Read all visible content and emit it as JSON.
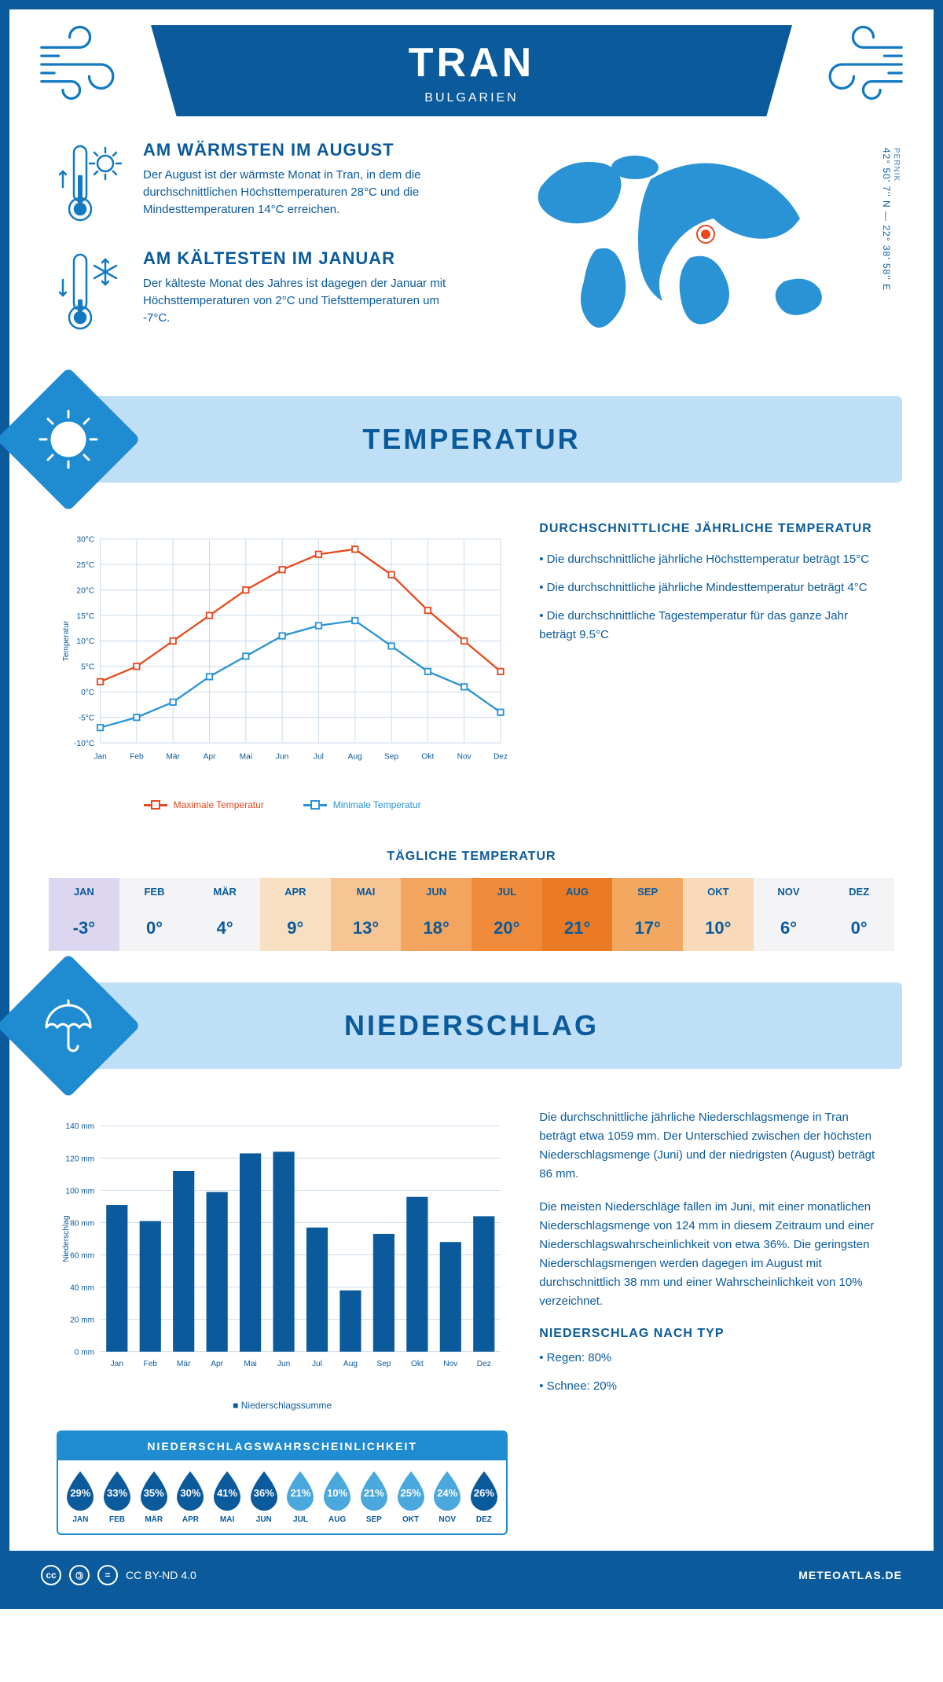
{
  "title": "TRAN",
  "subtitle": "BULGARIEN",
  "coords_region": "PERNIK",
  "coords": "42° 50' 7'' N — 22° 38' 58'' E",
  "brand_color": "#0a5a9c",
  "accent_color": "#1f8bd1",
  "band_bg": "#bedff5",
  "warmest": {
    "heading": "AM WÄRMSTEN IM AUGUST",
    "text": "Der August ist der wärmste Monat in Tran, in dem die durchschnittlichen Höchsttemperaturen 28°C und die Mindesttemperaturen 14°C erreichen."
  },
  "coldest": {
    "heading": "AM KÄLTESTEN IM JANUAR",
    "text": "Der kälteste Monat des Jahres ist dagegen der Januar mit Höchsttemperaturen von 2°C und Tiefsttemperaturen um -7°C."
  },
  "sections": {
    "temp": "TEMPERATUR",
    "precip": "NIEDERSCHLAG"
  },
  "temp_chart": {
    "months": [
      "Jan",
      "Feb",
      "Mär",
      "Apr",
      "Mai",
      "Jun",
      "Jul",
      "Aug",
      "Sep",
      "Okt",
      "Nov",
      "Dez"
    ],
    "ylim": [
      -10,
      30
    ],
    "ytick_step": 5,
    "ylabel": "Temperatur",
    "yunit": "°C",
    "series": [
      {
        "name": "Maximale Temperatur",
        "color": "#e8481e",
        "values": [
          2,
          5,
          10,
          15,
          20,
          24,
          27,
          28,
          23,
          16,
          10,
          4
        ]
      },
      {
        "name": "Minimale Temperatur",
        "color": "#2a93d5",
        "values": [
          -7,
          -5,
          -2,
          3,
          7,
          11,
          13,
          14,
          9,
          4,
          1,
          -4
        ]
      }
    ]
  },
  "temp_side": {
    "heading": "DURCHSCHNITTLICHE JÄHRLICHE TEMPERATUR",
    "bullets": [
      "• Die durchschnittliche jährliche Höchsttemperatur beträgt 15°C",
      "• Die durchschnittliche jährliche Mindesttemperatur beträgt 4°C",
      "• Die durchschnittliche Tagestemperatur für das ganze Jahr beträgt 9.5°C"
    ]
  },
  "daily_temp": {
    "heading": "TÄGLICHE TEMPERATUR",
    "cells": [
      {
        "m": "JAN",
        "v": "-3°",
        "bg": "#dcd6f0"
      },
      {
        "m": "FEB",
        "v": "0°",
        "bg": "#f4f4f6"
      },
      {
        "m": "MÄR",
        "v": "4°",
        "bg": "#f4f4f6"
      },
      {
        "m": "APR",
        "v": "9°",
        "bg": "#f9dfc2"
      },
      {
        "m": "MAI",
        "v": "13°",
        "bg": "#f7c593"
      },
      {
        "m": "JUN",
        "v": "18°",
        "bg": "#f3a55f"
      },
      {
        "m": "JUL",
        "v": "20°",
        "bg": "#ef8b3b"
      },
      {
        "m": "AUG",
        "v": "21°",
        "bg": "#ea7a24"
      },
      {
        "m": "SEP",
        "v": "17°",
        "bg": "#f3a862"
      },
      {
        "m": "OKT",
        "v": "10°",
        "bg": "#f8dabb"
      },
      {
        "m": "NOV",
        "v": "6°",
        "bg": "#f4f4f6"
      },
      {
        "m": "DEZ",
        "v": "0°",
        "bg": "#f4f4f6"
      }
    ]
  },
  "precip_chart": {
    "months": [
      "Jan",
      "Feb",
      "Mär",
      "Apr",
      "Mai",
      "Jun",
      "Jul",
      "Aug",
      "Sep",
      "Okt",
      "Nov",
      "Dez"
    ],
    "ylim": [
      0,
      140
    ],
    "ytick_step": 20,
    "ylabel": "Niederschlag",
    "yunit": " mm",
    "color": "#0a5a9c",
    "legend": "Niederschlagssumme",
    "values": [
      91,
      81,
      112,
      99,
      123,
      124,
      77,
      38,
      73,
      96,
      68,
      84
    ]
  },
  "precip_text": {
    "p1": "Die durchschnittliche jährliche Niederschlagsmenge in Tran beträgt etwa 1059 mm. Der Unterschied zwischen der höchsten Niederschlagsmenge (Juni) und der niedrigsten (August) beträgt 86 mm.",
    "p2": "Die meisten Niederschläge fallen im Juni, mit einer monatlichen Niederschlagsmenge von 124 mm in diesem Zeitraum und einer Niederschlagswahrscheinlichkeit von etwa 36%. Die geringsten Niederschlagsmengen werden dagegen im August mit durchschnittlich 38 mm und einer Wahrscheinlichkeit von 10% verzeichnet.",
    "type_heading": "NIEDERSCHLAG NACH TYP",
    "type_rain": "• Regen: 80%",
    "type_snow": "• Schnee: 20%"
  },
  "prob": {
    "heading": "NIEDERSCHLAGSWAHRSCHEINLICHKEIT",
    "items": [
      {
        "m": "JAN",
        "p": "29%",
        "c": "#0a5a9c"
      },
      {
        "m": "FEB",
        "p": "33%",
        "c": "#0a5a9c"
      },
      {
        "m": "MÄR",
        "p": "35%",
        "c": "#0a5a9c"
      },
      {
        "m": "APR",
        "p": "30%",
        "c": "#0a5a9c"
      },
      {
        "m": "MAI",
        "p": "41%",
        "c": "#0a5a9c"
      },
      {
        "m": "JUN",
        "p": "36%",
        "c": "#0a5a9c"
      },
      {
        "m": "JUL",
        "p": "21%",
        "c": "#4aa8dd"
      },
      {
        "m": "AUG",
        "p": "10%",
        "c": "#4aa8dd"
      },
      {
        "m": "SEP",
        "p": "21%",
        "c": "#4aa8dd"
      },
      {
        "m": "OKT",
        "p": "25%",
        "c": "#4aa8dd"
      },
      {
        "m": "NOV",
        "p": "24%",
        "c": "#4aa8dd"
      },
      {
        "m": "DEZ",
        "p": "26%",
        "c": "#0a5a9c"
      }
    ]
  },
  "footer": {
    "license": "CC BY-ND 4.0",
    "site": "METEOATLAS.DE"
  }
}
